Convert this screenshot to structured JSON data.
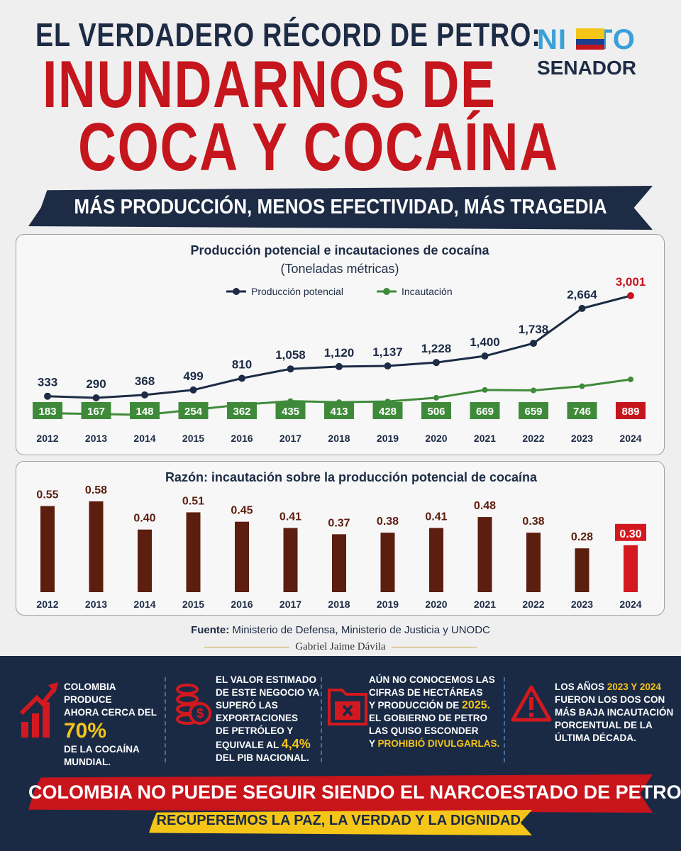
{
  "header": {
    "line1": "EL VERDADERO RÉCORD DE PETRO:",
    "line2": "INUNDARNOS DE",
    "line3": "COCA Y COCAÍNA",
    "subtitle": "MÁS PRODUCCIÓN, MENOS EFECTIVIDAD, MÁS TRAGEDIA"
  },
  "logo": {
    "part1": "NI",
    "part2": "TO",
    "line2": "SENADOR"
  },
  "colors": {
    "navy": "#1d2b45",
    "red": "#c5161d",
    "green": "#3f8a3a",
    "brown": "#5c1e0f",
    "yellow": "#f5c518"
  },
  "chart_data": [
    {
      "type": "line",
      "title": "Producción potencial e incautaciones de cocaína",
      "subtitle": "(Toneladas métricas)",
      "x": [
        "2012",
        "2013",
        "2014",
        "2015",
        "2016",
        "2017",
        "2018",
        "2019",
        "2020",
        "2021",
        "2022",
        "2023",
        "2024"
      ],
      "series": [
        {
          "name": "Producción potencial",
          "color": "#1d2b45",
          "values": [
            333,
            290,
            368,
            499,
            810,
            1058,
            1120,
            1137,
            1228,
            1400,
            1738,
            2664,
            3001
          ],
          "labels": [
            "333",
            "290",
            "368",
            "499",
            "810",
            "1,058",
            "1,120",
            "1,137",
            "1,228",
            "1,400",
            "1,738",
            "2,664",
            "3,001"
          ]
        },
        {
          "name": "Incautación",
          "color": "#3f8a3a",
          "values": [
            183,
            167,
            148,
            254,
            362,
            435,
            413,
            428,
            506,
            669,
            659,
            746,
            889
          ],
          "labels": [
            "183",
            "167",
            "148",
            "254",
            "362",
            "435",
            "413",
            "428",
            "506",
            "669",
            "659",
            "746",
            "889"
          ]
        }
      ],
      "highlight": "2024",
      "legend": "top"
    },
    {
      "type": "bar",
      "title": "Razón: incautación sobre la producción potencial de cocaína",
      "categories": [
        "2012",
        "2013",
        "2014",
        "2015",
        "2016",
        "2017",
        "2018",
        "2019",
        "2020",
        "2021",
        "2022",
        "2023",
        "2024"
      ],
      "values": [
        0.55,
        0.58,
        0.4,
        0.51,
        0.45,
        0.41,
        0.37,
        0.38,
        0.41,
        0.48,
        0.38,
        0.28,
        0.3
      ],
      "labels": [
        "0.55",
        "0.58",
        "0.40",
        "0.51",
        "0.45",
        "0.41",
        "0.37",
        "0.38",
        "0.41",
        "0.48",
        "0.38",
        "0.28",
        "0.30"
      ],
      "highlight": "2024"
    }
  ],
  "source": {
    "label": "Fuente:",
    "text": " Ministerio de Defensa, Ministerio de Justicia y UNODC"
  },
  "author": "Gabriel Jaime Dávila",
  "info": {
    "b1": {
      "l1": "COLOMBIA PRODUCE",
      "l2": "AHORA CERCA DEL",
      "big": "70%",
      "l3": "DE LA COCAÍNA",
      "l4": "MUNDIAL.",
      "icon": "chart-up-icon"
    },
    "b2": {
      "l1": "EL VALOR ESTIMADO",
      "l2": "DE ESTE NEGOCIO YA",
      "l3": "SUPERÓ LAS",
      "l4": "EXPORTACIONES",
      "l5": "DE PETRÓLEO Y",
      "l6a": "EQUIVALE AL ",
      "l6b": "4,4%",
      "l7": "DEL PIB NACIONAL.",
      "icon": "money-icon"
    },
    "b3": {
      "l1": "AÚN NO CONOCEMOS LAS",
      "l2": "CIFRAS DE HECTÁREAS",
      "l3a": "Y PRODUCCIÓN DE ",
      "l3b": "2025.",
      "l4": "EL GOBIERNO DE PETRO",
      "l5": "LAS QUISO ESCONDER",
      "l6a": "Y ",
      "l6b": "PROHIBIÓ DIVULGARLAS.",
      "icon": "folder-x-icon"
    },
    "b4": {
      "l1": "LOS AÑOS ",
      "l1b": "2023 Y 2024",
      "l2": "FUERON LOS DOS CON",
      "l3": "MÁS BAJA INCAUTACIÓN",
      "l4": "PORCENTUAL DE LA",
      "l5": "ÚLTIMA DÉCADA.",
      "icon": "warning-icon"
    }
  },
  "banner": {
    "line1": "COLOMBIA NO PUEDE SEGUIR SIENDO EL NARCOESTADO DE PETRO.",
    "line2": "RECUPEREMOS LA PAZ, LA VERDAD Y LA DIGNIDAD."
  }
}
